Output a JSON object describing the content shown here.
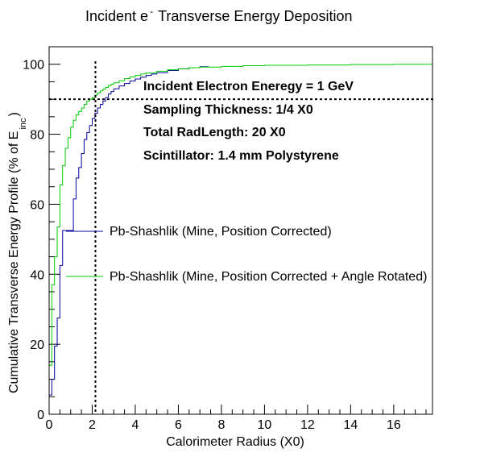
{
  "chart_data": {
    "type": "line",
    "title": "Incident e",
    "title_superscript": "-",
    "title_rest": "Transverse Energy Deposition",
    "xlabel": "Calorimeter Radius (X0)",
    "ylabel_main": "Cumulative Transverse Energy Profile (% of E",
    "ylabel_sub": "inc",
    "ylabel_close": ")",
    "xlim": [
      0,
      17.8
    ],
    "ylim": [
      0,
      105
    ],
    "x_ticks": [
      0,
      2,
      4,
      6,
      8,
      10,
      12,
      14,
      16
    ],
    "y_ticks": [
      0,
      20,
      40,
      60,
      80,
      100
    ],
    "x_tick_labels": [
      "0",
      "2",
      "4",
      "6",
      "8",
      "10",
      "12",
      "14",
      "16"
    ],
    "y_tick_labels": [
      "0",
      "20",
      "40",
      "60",
      "80",
      "100"
    ],
    "reference_lines": {
      "vertical_x": 2.15,
      "horizontal_y": 90
    },
    "annotations": [
      "Incident Electron Eneregy = 1 GeV",
      "Sampling Thickness: 1/4 X0",
      "Total RadLength: 20 X0",
      "Scintillator: 1.4 mm Polystyrene"
    ],
    "series": [
      {
        "name": "Pb-Shashlik (Mine, Position Corrected)",
        "color": "#00009c",
        "style": "step",
        "x": [
          0,
          0.125,
          0.25,
          0.375,
          0.5,
          0.625,
          0.75,
          0.875,
          1.0,
          1.125,
          1.25,
          1.375,
          1.5,
          1.625,
          1.75,
          1.875,
          2.0,
          2.125,
          2.25,
          2.375,
          2.5,
          2.625,
          2.75,
          2.875,
          3.0,
          3.25,
          3.5,
          3.75,
          4.0,
          4.25,
          4.5,
          4.75,
          5.0,
          5.5,
          6.0,
          6.5,
          7.0,
          7.4
        ],
        "y": [
          5.5,
          10,
          19.5,
          27.5,
          42.5,
          52.5,
          52.5,
          52.5,
          52.5,
          61.5,
          67.5,
          70.5,
          74.5,
          78.5,
          80.5,
          82.5,
          84.5,
          86.0,
          87.5,
          88.5,
          89.5,
          90.5,
          91.5,
          92.2,
          93.0,
          93.8,
          94.5,
          95.2,
          95.8,
          96.3,
          96.8,
          97.2,
          97.6,
          98.2,
          98.7,
          99.0,
          99.3,
          99.3
        ]
      },
      {
        "name": "Pb-Shashlik (Mine, Position Corrected + Angle Rotated)",
        "color": "#00cc00",
        "style": "step",
        "x": [
          0,
          0.125,
          0.25,
          0.375,
          0.5,
          0.625,
          0.75,
          0.875,
          1.0,
          1.125,
          1.25,
          1.375,
          1.5,
          1.625,
          1.75,
          1.875,
          2.0,
          2.125,
          2.25,
          2.375,
          2.5,
          2.625,
          2.75,
          2.875,
          3.0,
          3.25,
          3.5,
          3.75,
          4.0,
          4.25,
          4.5,
          5.0,
          5.5,
          6.0,
          6.5,
          7.0,
          8.0,
          9.0,
          10.0,
          12.0,
          14.0,
          16.0,
          17.8
        ],
        "y": [
          14,
          37,
          45,
          53.5,
          65.5,
          71,
          76,
          79,
          82,
          84,
          85.5,
          86.5,
          87.5,
          88.5,
          89.5,
          90.0,
          90.5,
          91.2,
          91.8,
          92.4,
          92.9,
          93.4,
          93.9,
          94.3,
          94.7,
          95.3,
          95.9,
          96.4,
          96.8,
          97.2,
          97.5,
          98.0,
          98.4,
          98.7,
          99.0,
          99.2,
          99.4,
          99.6,
          99.7,
          99.8,
          99.9,
          100.0,
          100.0
        ]
      }
    ]
  }
}
